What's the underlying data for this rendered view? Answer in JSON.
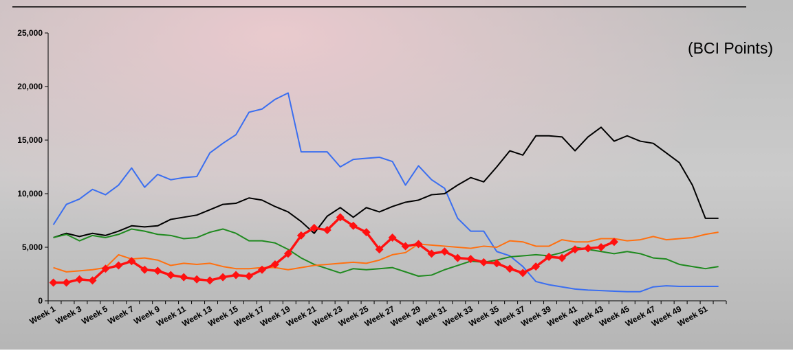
{
  "chart_data": {
    "type": "line",
    "annotation": "(BCI Points)",
    "categories": [
      "Week 1",
      null,
      "Week 3",
      null,
      "Week 5",
      null,
      "Week 7",
      null,
      "Week 9",
      null,
      "Week 11",
      null,
      "Week 13",
      null,
      "Week 15",
      null,
      "Week 17",
      null,
      "Week 19",
      null,
      "Week 21",
      null,
      "Week 23",
      null,
      "Week 25",
      null,
      "Week 27",
      null,
      "Week 29",
      null,
      "Week 31",
      null,
      "Week 33",
      null,
      "Week 35",
      null,
      "Week 37",
      null,
      "Week 39",
      null,
      "Week 41",
      null,
      "Week 43",
      null,
      "Week 45",
      null,
      "Week 47",
      null,
      "Week 49",
      null,
      "Week 51",
      null
    ],
    "ylim": [
      0,
      25000
    ],
    "yticks": [
      0,
      {
        "value": 5000,
        "label": "5,000"
      },
      {
        "value": 10000,
        "label": "10,000"
      },
      {
        "value": 15000,
        "label": "15,000"
      },
      {
        "value": 20000,
        "label": "20,000"
      },
      {
        "value": 25000,
        "label": "25,000"
      }
    ],
    "series": [
      {
        "color": "#3a6ef0",
        "marker": false,
        "values": [
          7100,
          9000,
          9500,
          10400,
          9900,
          10800,
          12400,
          10600,
          11800,
          11300,
          11500,
          11600,
          13800,
          14700,
          15500,
          17600,
          17900,
          18800,
          19400,
          13900,
          13900,
          13900,
          12500,
          13200,
          13300,
          13400,
          13000,
          10800,
          12600,
          11300,
          10500,
          7700,
          6500,
          6500,
          4600,
          4200,
          3200,
          1800,
          1500,
          1300,
          1100,
          1000,
          950,
          900,
          850,
          850,
          1300,
          1400,
          1350,
          1350,
          1350,
          1350
        ]
      },
      {
        "color": "#000000",
        "marker": false,
        "values": [
          5900,
          6300,
          6000,
          6300,
          6100,
          6500,
          7000,
          6900,
          7000,
          7600,
          7800,
          8000,
          8500,
          9000,
          9100,
          9600,
          9400,
          8800,
          8300,
          7400,
          6300,
          7900,
          8700,
          7800,
          8700,
          8300,
          8800,
          9200,
          9400,
          9900,
          10000,
          10800,
          11500,
          11100,
          12500,
          14000,
          13600,
          15400,
          15400,
          15300,
          14000,
          15300,
          16200,
          14900,
          15400,
          14900,
          14700,
          13800,
          12900,
          10800,
          7700,
          7700
        ]
      },
      {
        "color": "#1f8a1f",
        "marker": false,
        "values": [
          5900,
          6200,
          5600,
          6100,
          5900,
          6200,
          6700,
          6500,
          6200,
          6100,
          5800,
          5900,
          6400,
          6700,
          6300,
          5600,
          5600,
          5400,
          4800,
          4000,
          3400,
          3000,
          2600,
          3000,
          2900,
          3000,
          3100,
          2700,
          2300,
          2400,
          2900,
          3300,
          3700,
          3600,
          3800,
          4100,
          4200,
          4300,
          4200,
          4500,
          5000,
          4800,
          4600,
          4400,
          4600,
          4400,
          4000,
          3900,
          3400,
          3200,
          3000,
          3200
        ]
      },
      {
        "color": "#ff7010",
        "marker": false,
        "values": [
          3100,
          2700,
          2800,
          2900,
          3100,
          4300,
          3900,
          4000,
          3800,
          3300,
          3500,
          3400,
          3500,
          3200,
          3000,
          3000,
          3100,
          3100,
          2900,
          3100,
          3300,
          3400,
          3500,
          3600,
          3500,
          3800,
          4300,
          4500,
          5300,
          5200,
          5100,
          5000,
          4900,
          5100,
          5000,
          5600,
          5500,
          5100,
          5100,
          5700,
          5500,
          5500,
          5800,
          5800,
          5600,
          5700,
          6000,
          5700,
          5800,
          5900,
          6200,
          6400
        ]
      },
      {
        "color": "#ff1010",
        "marker": true,
        "values": [
          1700,
          1700,
          2000,
          1900,
          3000,
          3300,
          3700,
          2900,
          2800,
          2400,
          2200,
          2000,
          1900,
          2200,
          2400,
          2300,
          2900,
          3400,
          4400,
          6100,
          6800,
          6600,
          7800,
          7000,
          6400,
          4800,
          5900,
          5100,
          5300,
          4400,
          4600,
          4000,
          3900,
          3600,
          3500,
          3000,
          2600,
          3200,
          4100,
          4000,
          4800,
          4900,
          5000,
          5500,
          null,
          null,
          null,
          null,
          null,
          null,
          null,
          null
        ]
      }
    ]
  }
}
